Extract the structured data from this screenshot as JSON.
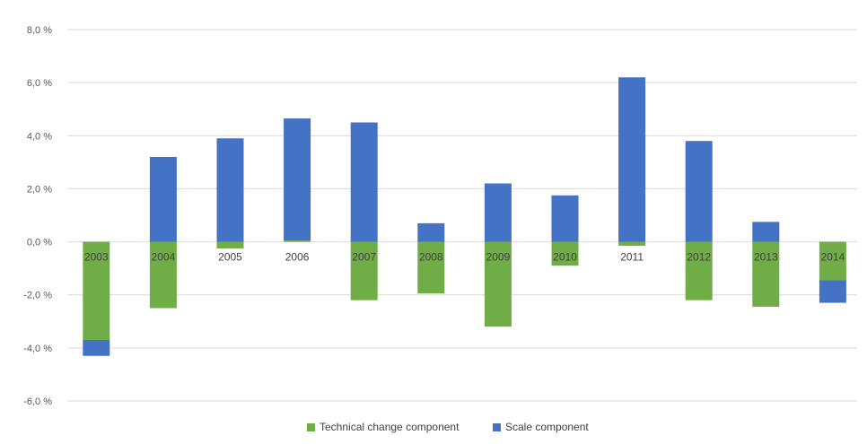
{
  "chart_data": {
    "type": "bar",
    "stacked": true,
    "title": "",
    "xlabel": "",
    "ylabel": "",
    "categories": [
      "2003",
      "2004",
      "2005",
      "2006",
      "2007",
      "2008",
      "2009",
      "2010",
      "2011",
      "2012",
      "2013",
      "2014"
    ],
    "series": [
      {
        "name": "Technical change component",
        "color": "#70ad47",
        "values": [
          -3.7,
          -2.5,
          -0.25,
          0.05,
          -2.2,
          -1.95,
          -3.2,
          -0.9,
          -0.15,
          -2.2,
          -2.45,
          -1.45
        ]
      },
      {
        "name": "Scale component",
        "color": "#4472c4",
        "values": [
          -0.6,
          3.2,
          3.9,
          4.6,
          4.5,
          0.7,
          2.2,
          1.75,
          6.2,
          3.8,
          0.75,
          -0.85
        ]
      }
    ],
    "ylim": [
      -6,
      8
    ],
    "yticks": [
      -6,
      -4,
      -2,
      0,
      2,
      4,
      6,
      8
    ],
    "ytick_labels": [
      "-6,0 %",
      "-4,0 %",
      "-2,0 %",
      "0,0 %",
      "2,0 %",
      "4,0 %",
      "6,0 %",
      "8,0 %"
    ],
    "grid": true,
    "legend_position": "bottom"
  }
}
